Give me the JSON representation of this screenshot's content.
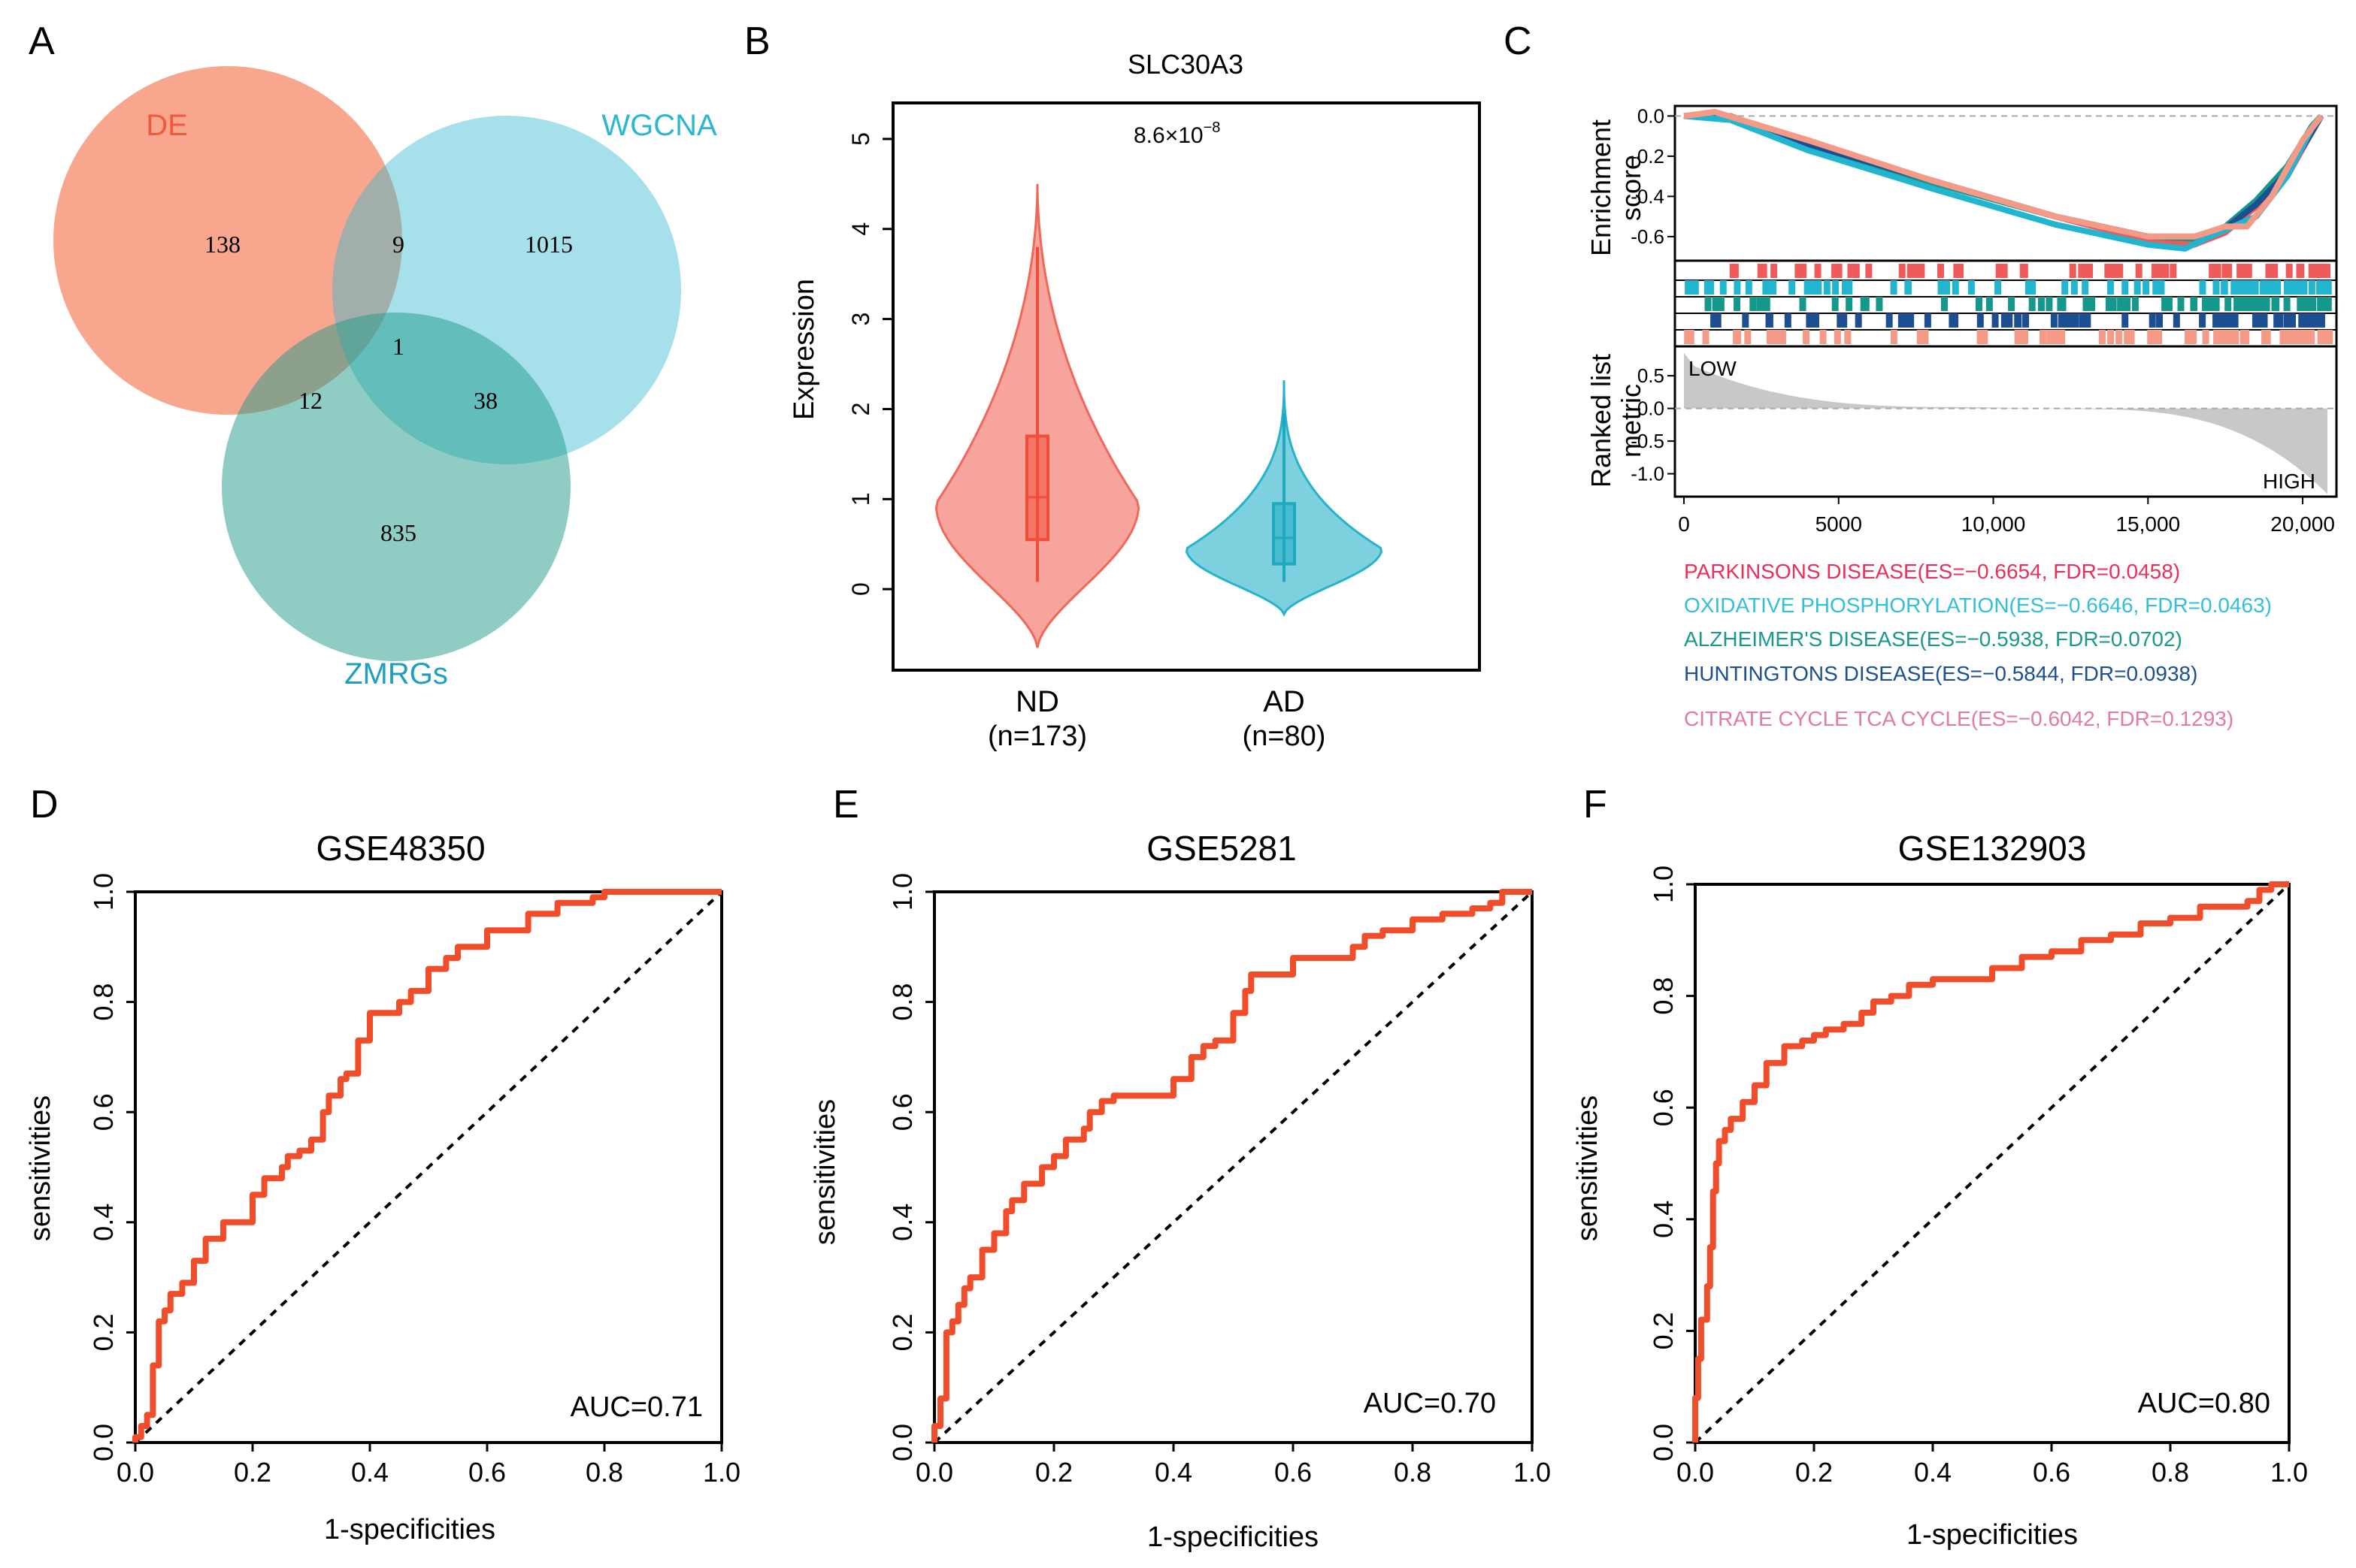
{
  "panel_labels": {
    "a": "A",
    "b": "B",
    "c": "C",
    "d": "D",
    "e": "E",
    "f": "F"
  },
  "colors": {
    "de": "#f46d43",
    "wgcna": "#2cb7cf",
    "zmrgs": "#1f9a8a",
    "roc_line": "#f04e2b",
    "nd": "#f0685a",
    "ad": "#26b3c9",
    "gsea_parkinsons": "#f05a5a",
    "gsea_oxphos": "#22b5d0",
    "gsea_alzheimers": "#14988b",
    "gsea_huntingtons": "#1c4f91",
    "gsea_citrate": "#f59a86"
  },
  "chart_data": [
    {
      "type": "venn",
      "panel": "A",
      "sets": [
        {
          "name": "DE",
          "color": "#f46d43"
        },
        {
          "name": "WGCNA",
          "color": "#2cb7cf"
        },
        {
          "name": "ZMRGs",
          "color": "#1f9a8a"
        }
      ],
      "regions": {
        "de_only": "138",
        "wgcna_only": "1015",
        "zmrgs_only": "835",
        "de_wgcna": "9",
        "de_zmrgs": "12",
        "wgcna_zmrgs": "38",
        "all": "1"
      }
    },
    {
      "type": "violin",
      "panel": "B",
      "title": "SLC30A3",
      "ylabel": "Expression",
      "ylim": [
        -0.9,
        5.4
      ],
      "yticks": [
        "0",
        "1",
        "2",
        "3",
        "4",
        "5"
      ],
      "p_value_base": "8.6×10",
      "p_value_exp": "−8",
      "groups": [
        {
          "name": "ND",
          "n_label": "(n=173)",
          "q1": 0.55,
          "median": 1.02,
          "q3": 1.7,
          "whisker_low": 0.08,
          "whisker_high": 3.8,
          "min": -0.65,
          "max": 4.5
        },
        {
          "name": "AD",
          "n_label": "(n=80)",
          "q1": 0.28,
          "median": 0.57,
          "q3": 0.95,
          "whisker_low": 0.08,
          "whisker_high": 1.95,
          "min": -0.28,
          "max": 2.32
        }
      ]
    },
    {
      "type": "line",
      "panel": "C",
      "subtype": "gsea",
      "es_ylabel_line1": "Enrichment",
      "es_ylabel_line2": "score",
      "rank_ylabel_line1": "Ranked list",
      "rank_ylabel_line2": "metric",
      "es_yticks": [
        "0.0",
        "-0.2",
        "-0.4",
        "-0.6"
      ],
      "rank_yticks": [
        "0.5",
        "0.0",
        "-0.5",
        "-1.0"
      ],
      "xticks": [
        "0",
        "5000",
        "10,000",
        "15,000",
        "20,000"
      ],
      "xlim": [
        0,
        20800
      ],
      "es_ylim": [
        -0.72,
        0.05
      ],
      "rank_ylim": [
        -1.35,
        0.95
      ],
      "low_label": "LOW",
      "high_label": "HIGH",
      "series": [
        {
          "name": "PARKINSONS DISEASE",
          "legend": "PARKINSONS DISEASE(ES=−0.6654, FDR=0.0458)",
          "color": "#f05a5a",
          "legend_color": "#e8305a",
          "x": [
            0,
            1500,
            4000,
            8000,
            12000,
            15000,
            16500,
            17500,
            18500,
            19500,
            20300,
            20600
          ],
          "y": [
            0,
            0.0,
            -0.14,
            -0.32,
            -0.5,
            -0.62,
            -0.64,
            -0.58,
            -0.45,
            -0.3,
            -0.08,
            0
          ]
        },
        {
          "name": "OXIDATIVE PHOSPHORYLATION",
          "legend": "OXIDATIVE PHOSPHORYLATION(ES=−0.6646, FDR=0.0463)",
          "color": "#22b5d0",
          "legend_color": "#33bfd8",
          "x": [
            0,
            1500,
            4000,
            8000,
            12000,
            15000,
            16200,
            17000,
            18500,
            19500,
            20300,
            20600
          ],
          "y": [
            0,
            -0.02,
            -0.17,
            -0.36,
            -0.54,
            -0.64,
            -0.66,
            -0.6,
            -0.5,
            -0.3,
            -0.06,
            0
          ]
        },
        {
          "name": "ALZHEIMER'S DISEASE",
          "legend": "ALZHEIMER'S DISEASE(ES=−0.5938, FDR=0.0702)",
          "color": "#14988b",
          "legend_color": "#1a9a8c",
          "x": [
            0,
            1500,
            4000,
            8000,
            12000,
            15000,
            16500,
            17500,
            18500,
            19500,
            20300,
            20600
          ],
          "y": [
            0,
            -0.01,
            -0.15,
            -0.33,
            -0.5,
            -0.6,
            -0.61,
            -0.55,
            -0.42,
            -0.25,
            -0.05,
            0
          ]
        },
        {
          "name": "HUNTINGTONS DISEASE",
          "legend": "HUNTINGTONS DISEASE(ES=−0.5844, FDR=0.0938)",
          "color": "#1c4f91",
          "legend_color": "#1c4f91",
          "x": [
            0,
            1500,
            4000,
            8000,
            12000,
            15000,
            16500,
            17500,
            18500,
            19500,
            20300,
            20600
          ],
          "y": [
            0,
            -0.01,
            -0.14,
            -0.32,
            -0.5,
            -0.6,
            -0.6,
            -0.56,
            -0.44,
            -0.28,
            -0.08,
            0
          ]
        },
        {
          "name": "CITRATE CYCLE TCA CYCLE",
          "legend": "CITRATE CYCLE TCA CYCLE(ES=−0.6042, FDR=0.1293)",
          "color": "#f59a86",
          "legend_color": "#e27aa6",
          "x": [
            0,
            1000,
            4000,
            8000,
            12000,
            15000,
            16500,
            17500,
            18200,
            19000,
            20000,
            20600
          ],
          "y": [
            0,
            0.02,
            -0.12,
            -0.32,
            -0.5,
            -0.6,
            -0.6,
            -0.55,
            -0.55,
            -0.4,
            -0.12,
            0
          ]
        }
      ]
    },
    {
      "type": "line",
      "subtype": "roc",
      "panel": "D",
      "title": "GSE48350",
      "xlabel": "1-specificities",
      "ylabel": "sensitivities",
      "auc_label": "AUC=0.71",
      "xticks": [
        "0.0",
        "0.2",
        "0.4",
        "0.6",
        "0.8",
        "1.0"
      ],
      "yticks": [
        "0.0",
        "0.2",
        "0.4",
        "0.6",
        "0.8",
        "1.0"
      ],
      "xlim": [
        0,
        1
      ],
      "ylim": [
        0,
        1
      ],
      "x": [
        0,
        0.01,
        0.02,
        0.03,
        0.04,
        0.05,
        0.06,
        0.08,
        0.1,
        0.12,
        0.13,
        0.15,
        0.18,
        0.2,
        0.22,
        0.25,
        0.26,
        0.28,
        0.3,
        0.32,
        0.33,
        0.35,
        0.36,
        0.38,
        0.4,
        0.42,
        0.45,
        0.47,
        0.5,
        0.53,
        0.55,
        0.58,
        0.6,
        0.65,
        0.67,
        0.7,
        0.72,
        0.75,
        0.78,
        0.8,
        0.82,
        1.0
      ],
      "y": [
        0,
        0.01,
        0.03,
        0.05,
        0.14,
        0.22,
        0.24,
        0.27,
        0.29,
        0.33,
        0.37,
        0.37,
        0.4,
        0.4,
        0.45,
        0.48,
        0.5,
        0.52,
        0.53,
        0.55,
        0.6,
        0.63,
        0.66,
        0.67,
        0.73,
        0.78,
        0.78,
        0.8,
        0.82,
        0.86,
        0.88,
        0.9,
        0.9,
        0.93,
        0.93,
        0.96,
        0.96,
        0.98,
        0.98,
        0.99,
        1.0,
        1.0
      ]
    },
    {
      "type": "line",
      "subtype": "roc",
      "panel": "E",
      "title": "GSE5281",
      "xlabel": "1-specificities",
      "ylabel": "sensitivities",
      "auc_label": "AUC=0.70",
      "xticks": [
        "0.0",
        "0.2",
        "0.4",
        "0.6",
        "0.8",
        "1.0"
      ],
      "yticks": [
        "0.0",
        "0.2",
        "0.4",
        "0.6",
        "0.8",
        "1.0"
      ],
      "xlim": [
        0,
        1
      ],
      "ylim": [
        0,
        1
      ],
      "x": [
        0,
        0.01,
        0.02,
        0.03,
        0.04,
        0.05,
        0.06,
        0.08,
        0.1,
        0.12,
        0.13,
        0.15,
        0.18,
        0.2,
        0.22,
        0.25,
        0.26,
        0.28,
        0.3,
        0.33,
        0.36,
        0.4,
        0.43,
        0.45,
        0.47,
        0.5,
        0.52,
        0.53,
        0.55,
        0.57,
        0.6,
        0.65,
        0.7,
        0.72,
        0.75,
        0.8,
        0.85,
        0.9,
        0.93,
        0.95,
        0.97,
        1.0
      ],
      "y": [
        0,
        0.03,
        0.08,
        0.2,
        0.22,
        0.25,
        0.28,
        0.3,
        0.35,
        0.38,
        0.42,
        0.44,
        0.47,
        0.5,
        0.52,
        0.55,
        0.57,
        0.6,
        0.62,
        0.63,
        0.63,
        0.63,
        0.66,
        0.7,
        0.72,
        0.73,
        0.78,
        0.82,
        0.85,
        0.85,
        0.85,
        0.88,
        0.88,
        0.9,
        0.92,
        0.93,
        0.95,
        0.96,
        0.97,
        0.98,
        1.0,
        1.0
      ]
    },
    {
      "type": "line",
      "subtype": "roc",
      "panel": "F",
      "title": "GSE132903",
      "xlabel": "1-specificities",
      "ylabel": "sensitivities",
      "auc_label": "AUC=0.80",
      "xticks": [
        "0.0",
        "0.2",
        "0.4",
        "0.6",
        "0.8",
        "1.0"
      ],
      "yticks": [
        "0.0",
        "0.2",
        "0.4",
        "0.6",
        "0.8",
        "1.0"
      ],
      "xlim": [
        0,
        1
      ],
      "ylim": [
        0,
        1
      ],
      "x": [
        0,
        0.005,
        0.01,
        0.02,
        0.025,
        0.03,
        0.035,
        0.04,
        0.05,
        0.06,
        0.08,
        0.1,
        0.12,
        0.15,
        0.18,
        0.2,
        0.22,
        0.25,
        0.28,
        0.3,
        0.33,
        0.36,
        0.4,
        0.45,
        0.5,
        0.55,
        0.6,
        0.65,
        0.7,
        0.75,
        0.8,
        0.85,
        0.9,
        0.93,
        0.95,
        0.97,
        1.0
      ],
      "y": [
        0,
        0.08,
        0.15,
        0.22,
        0.28,
        0.35,
        0.45,
        0.5,
        0.54,
        0.56,
        0.58,
        0.61,
        0.64,
        0.68,
        0.71,
        0.72,
        0.73,
        0.74,
        0.75,
        0.77,
        0.79,
        0.8,
        0.82,
        0.83,
        0.83,
        0.85,
        0.87,
        0.88,
        0.9,
        0.91,
        0.93,
        0.94,
        0.96,
        0.96,
        0.97,
        0.99,
        1.0
      ]
    }
  ]
}
